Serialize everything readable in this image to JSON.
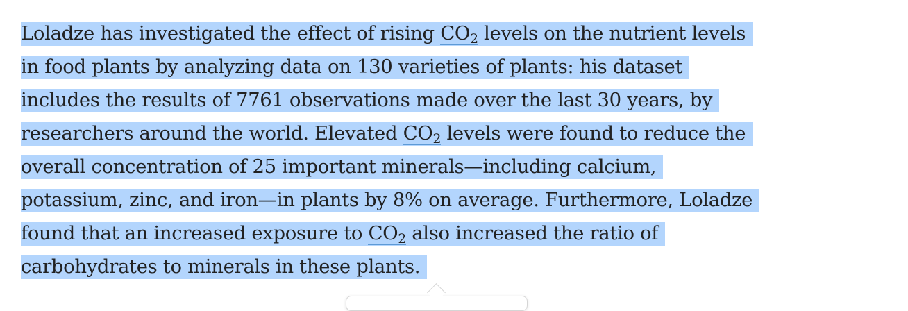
{
  "paragraph": {
    "selection_color": "#b3d5fd",
    "line1": {
      "a": "Loladze has investigated the effect of rising ",
      "b": " levels on the nutrient levels"
    },
    "line2": "in food plants by analyzing data on 130 varieties of plants: his dataset",
    "line3": "includes the results of 7761 observations made over the last 30 years, by",
    "line4": {
      "a": "researchers around the world. Elevated ",
      "b": " levels were found to reduce the"
    },
    "line5": "overall concentration of 25 important minerals—including calcium,",
    "line6": "potassium, zinc, and iron—in plants by 8% on average. Furthermore, Loladze",
    "line7": {
      "a": "found that an increased exposure to ",
      "b": " also increased the ratio of"
    },
    "line8": "carbohydrates to minerals in these plants.",
    "term": {
      "base": "CO",
      "sub": "2"
    }
  }
}
